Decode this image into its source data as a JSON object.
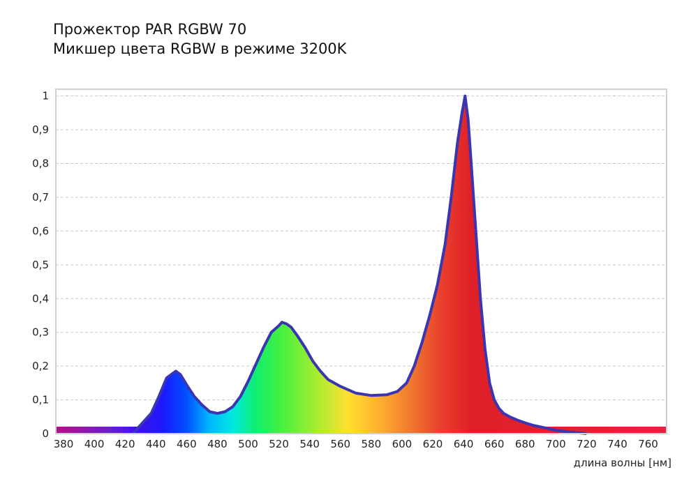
{
  "chart_data": {
    "type": "area",
    "title": "Прожектор PAR RGBW 70",
    "subtitle": "Микшер цвета RGBW в режиме 3200K",
    "xlabel": "длина волны [нм]",
    "ylabel": "",
    "xlim": [
      375,
      772
    ],
    "ylim": [
      0,
      1.02
    ],
    "x_ticks": [
      380,
      400,
      420,
      440,
      460,
      480,
      500,
      520,
      540,
      560,
      580,
      600,
      620,
      640,
      660,
      680,
      700,
      720,
      740,
      760
    ],
    "y_ticks": [
      {
        "value": 0,
        "label": "0"
      },
      {
        "value": 0.1,
        "label": "0,1"
      },
      {
        "value": 0.2,
        "label": "0,2"
      },
      {
        "value": 0.3,
        "label": "0,3"
      },
      {
        "value": 0.4,
        "label": "0,4"
      },
      {
        "value": 0.5,
        "label": "0,5"
      },
      {
        "value": 0.6,
        "label": "0,6"
      },
      {
        "value": 0.7,
        "label": "0,7"
      },
      {
        "value": 0.8,
        "label": "0,8"
      },
      {
        "value": 0.9,
        "label": "0,9"
      },
      {
        "value": 1,
        "label": "1"
      }
    ],
    "grid": true,
    "legend": "none",
    "series": [
      {
        "x": [
          425,
          430,
          437,
          442,
          447,
          450,
          453,
          456,
          460,
          465,
          470,
          475,
          480,
          485,
          490,
          495,
          500,
          505,
          510,
          515,
          520,
          522,
          525,
          528,
          532,
          537,
          542,
          547,
          552,
          560,
          570,
          580,
          590,
          597,
          603,
          608,
          613,
          618,
          623,
          628,
          632,
          636,
          639,
          641,
          643,
          645,
          648,
          651,
          654,
          657,
          660,
          663,
          666,
          670,
          675,
          680,
          685,
          690,
          695,
          700,
          705,
          710,
          715,
          720
        ],
        "y": [
          0.0,
          0.025,
          0.06,
          0.11,
          0.165,
          0.175,
          0.185,
          0.175,
          0.145,
          0.11,
          0.085,
          0.065,
          0.06,
          0.065,
          0.08,
          0.11,
          0.155,
          0.205,
          0.255,
          0.3,
          0.32,
          0.33,
          0.325,
          0.315,
          0.29,
          0.255,
          0.215,
          0.185,
          0.16,
          0.14,
          0.12,
          0.113,
          0.115,
          0.125,
          0.15,
          0.2,
          0.27,
          0.35,
          0.44,
          0.56,
          0.7,
          0.86,
          0.95,
          1.0,
          0.93,
          0.8,
          0.6,
          0.4,
          0.25,
          0.15,
          0.1,
          0.075,
          0.06,
          0.05,
          0.04,
          0.032,
          0.025,
          0.02,
          0.015,
          0.01,
          0.007,
          0.004,
          0.002,
          0.0
        ]
      }
    ],
    "colors": {
      "outline": "#3a35b0",
      "baseline_band": "#e8244a",
      "grid": "#c8c8c8",
      "frame": "#d0d0d0"
    }
  }
}
